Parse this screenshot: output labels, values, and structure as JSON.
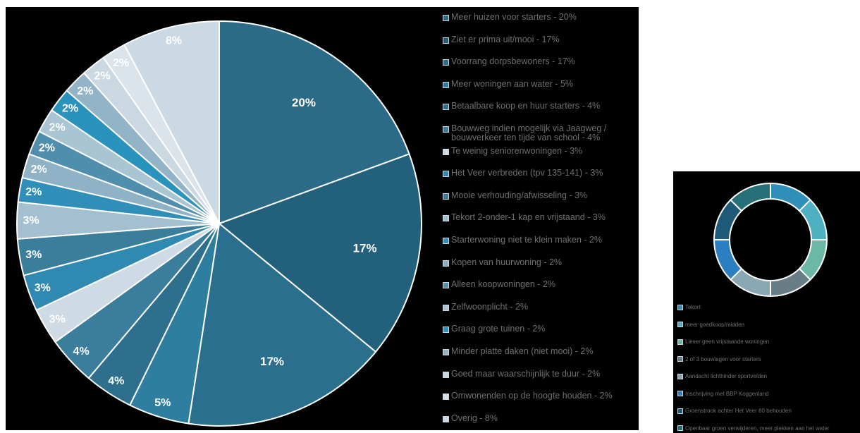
{
  "chart_data": [
    {
      "type": "pie",
      "categories": [
        "Meer huizen voor starters - 20%",
        "Ziet er prima uit/mooi - 17%",
        "Voorrang dorpsbewoners - 17%",
        "Meer woningen aan water - 5%",
        "Betaalbare koop en huur starters - 4%",
        "Bouwweg indien mogelijk via Jaagweg / bouwverkeer ten tijde van school - 4%",
        "Te weinig seniorenwoningen - 3%",
        "Het Veer verbreden (tpv 135-141) - 3%",
        "Mooie verhouding/afwisseling - 3%",
        "Tekort 2-onder-1 kap en vrijstaand - 3%",
        "Starterwoning niet te klein maken - 2%",
        "Kopen van huurwoning - 2%",
        "Alleen koopwoningen - 2%",
        "Zelfwoonplicht - 2%",
        "Graag grote tuinen - 2%",
        "Minder platte daken (niet mooi) - 2%",
        "Goed maar waarschijnlijk te duur - 2%",
        "Omwonenden op de hoogte houden - 2%",
        "Overig - 8%"
      ],
      "values": [
        20,
        17,
        17,
        5,
        4,
        4,
        3,
        3,
        3,
        3,
        2,
        2,
        2,
        2,
        2,
        2,
        2,
        2,
        8
      ],
      "data_labels": [
        "20%",
        "17%",
        "17%",
        "5%",
        "4%",
        "4%",
        "3%",
        "3%",
        "3%",
        "3%",
        "2%",
        "2%",
        "2%",
        "2%",
        "2%",
        "2%",
        "2%",
        "2%",
        "8%"
      ],
      "colors": [
        "#2b6b88",
        "#22607b",
        "#2a6f8e",
        "#2e7ea0",
        "#2d6f8d",
        "#3a7e9c",
        "#cfdbe4",
        "#3089b0",
        "#3b7e9c",
        "#a4c0d0",
        "#2f8fb8",
        "#8fb2c6",
        "#4f8fad",
        "#a9c4d3",
        "#2a93bd",
        "#93b4c6",
        "#c9d8e1",
        "#dbe4ea",
        "#cad9e3"
      ],
      "legend_position": "right"
    },
    {
      "type": "donut",
      "categories": [
        "Tekort",
        "meer goedkoop/midden",
        "Liever geen vrijstaande woningen",
        "2 of 3 bouwlagen voor starters",
        "Aandacht lichthinder sportvelden",
        "Inschrijving met BBP Koggenland",
        "Groenstrook achter Het Veer 80 behouden",
        "Openbaar groen verwijderen, meer plekken aan het water"
      ],
      "values": [
        1,
        1,
        1,
        1,
        1,
        1,
        1,
        1
      ],
      "colors": [
        "#2f8fb8",
        "#4fb0c2",
        "#6bb8a6",
        "#677e86",
        "#8aa8b4",
        "#2b7fc0",
        "#1e5a78",
        "#27707a"
      ],
      "legend_position": "bottom"
    }
  ]
}
